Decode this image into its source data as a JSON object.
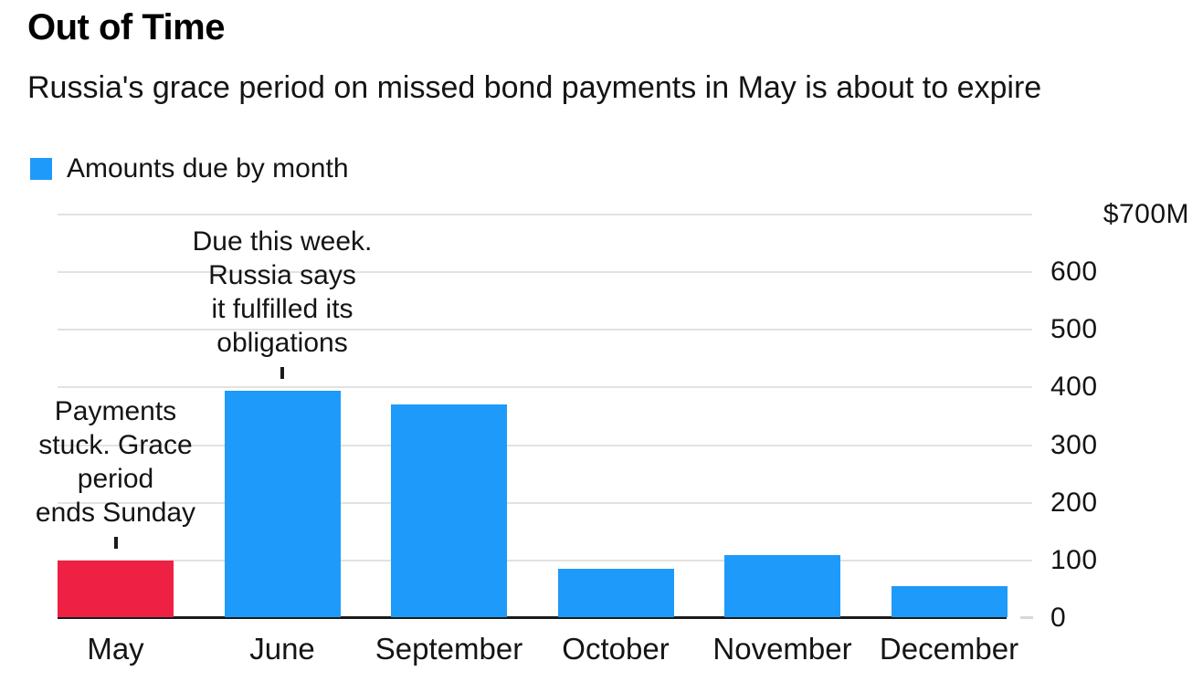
{
  "header": {
    "title": "Out of Time",
    "subtitle": "Russia's grace period on missed bond payments in May is about to expire",
    "legend": {
      "label": "Amounts due by month",
      "swatch_icon": "legend-square-icon",
      "swatch_color": "#1e9afa"
    }
  },
  "colors": {
    "bar_blue": "#1e9afa",
    "bar_red": "#ee2043",
    "gridline": "#e2e2e2",
    "axis": "#1a1a1a",
    "text": "#141414"
  },
  "chart_data": {
    "type": "bar",
    "title": "Out of Time",
    "subtitle": "Russia's grace period on missed bond payments in May is about to expire",
    "legend_entries": [
      "Amounts due by month"
    ],
    "legend_position": "top-left",
    "categories": [
      "May",
      "June",
      "September",
      "October",
      "November",
      "December"
    ],
    "values": [
      100,
      395,
      370,
      85,
      110,
      55
    ],
    "bar_colors": [
      "#ee2043",
      "#1e9afa",
      "#1e9afa",
      "#1e9afa",
      "#1e9afa",
      "#1e9afa"
    ],
    "unit": "$M",
    "xlabel": "",
    "ylabel": "",
    "ylim": [
      0,
      700
    ],
    "yticks": [
      0,
      100,
      200,
      300,
      400,
      500,
      600,
      700
    ],
    "ytick_labels": [
      "0",
      "100",
      "200",
      "300",
      "400",
      "500",
      "600",
      "$700M"
    ],
    "ytick_side": "right",
    "grid": true,
    "annotations": [
      {
        "target": "May",
        "lines": [
          "Payments",
          "stuck. Grace",
          "period",
          "ends Sunday"
        ]
      },
      {
        "target": "June",
        "lines": [
          "Due this week.",
          "Russia says",
          "it fulfilled its",
          "obligations"
        ]
      }
    ]
  }
}
